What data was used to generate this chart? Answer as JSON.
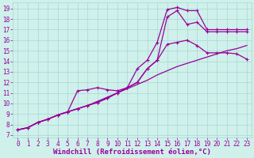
{
  "background_color": "#cff0eb",
  "grid_color": "#a8d8d0",
  "line_color": "#990099",
  "title": "",
  "xlabel": "Windchill (Refroidissement éolien,°C)",
  "xticks": [
    0,
    1,
    2,
    3,
    4,
    5,
    6,
    7,
    8,
    9,
    10,
    11,
    12,
    13,
    14,
    15,
    16,
    17,
    18,
    19,
    20,
    21,
    22,
    23
  ],
  "yticks": [
    7,
    8,
    9,
    10,
    11,
    12,
    13,
    14,
    15,
    16,
    17,
    18,
    19
  ],
  "ylim": [
    6.8,
    19.6
  ],
  "xlim": [
    -0.5,
    23.5
  ],
  "line1_x": [
    0,
    1,
    2,
    3,
    4,
    5,
    6,
    7,
    8,
    9,
    10,
    11,
    12,
    13,
    14,
    15,
    16,
    17,
    18,
    19,
    20,
    21,
    22,
    23
  ],
  "line1_y": [
    7.5,
    7.7,
    8.2,
    8.5,
    8.9,
    9.2,
    11.2,
    11.3,
    11.5,
    11.3,
    11.2,
    11.5,
    13.3,
    14.1,
    15.8,
    18.9,
    19.1,
    18.8,
    18.8,
    17.0,
    17.0,
    17.0,
    17.0,
    17.0
  ],
  "line2_x": [
    0,
    1,
    2,
    3,
    4,
    5,
    6,
    7,
    8,
    9,
    10,
    11,
    12,
    13,
    14,
    15,
    16,
    17,
    18,
    19,
    20,
    21,
    22,
    23
  ],
  "line2_y": [
    7.5,
    7.7,
    8.2,
    8.5,
    8.9,
    9.2,
    9.5,
    9.8,
    10.1,
    10.5,
    11.0,
    11.5,
    12.0,
    13.3,
    14.1,
    18.2,
    18.8,
    17.5,
    17.7,
    16.8,
    16.8,
    16.8,
    16.8,
    16.8
  ],
  "line3_x": [
    0,
    1,
    2,
    3,
    4,
    5,
    6,
    7,
    8,
    9,
    10,
    11,
    12,
    13,
    14,
    15,
    16,
    17,
    18,
    19,
    20,
    21,
    22,
    23
  ],
  "line3_y": [
    7.5,
    7.7,
    8.2,
    8.5,
    8.9,
    9.2,
    9.5,
    9.8,
    10.1,
    10.5,
    11.0,
    11.5,
    12.0,
    13.3,
    14.1,
    15.6,
    15.8,
    16.0,
    15.5,
    14.8,
    14.8,
    14.8,
    14.7,
    14.2
  ],
  "line4_x": [
    0,
    1,
    2,
    3,
    4,
    5,
    6,
    7,
    8,
    9,
    10,
    11,
    12,
    13,
    14,
    15,
    16,
    17,
    18,
    19,
    20,
    21,
    22,
    23
  ],
  "line4_y": [
    7.5,
    7.7,
    8.2,
    8.5,
    8.9,
    9.2,
    9.5,
    9.8,
    10.2,
    10.6,
    11.0,
    11.4,
    11.8,
    12.2,
    12.7,
    13.1,
    13.5,
    13.8,
    14.1,
    14.4,
    14.7,
    15.0,
    15.2,
    15.5
  ],
  "tick_fontsize": 5.5,
  "xlabel_fontsize": 6.5
}
